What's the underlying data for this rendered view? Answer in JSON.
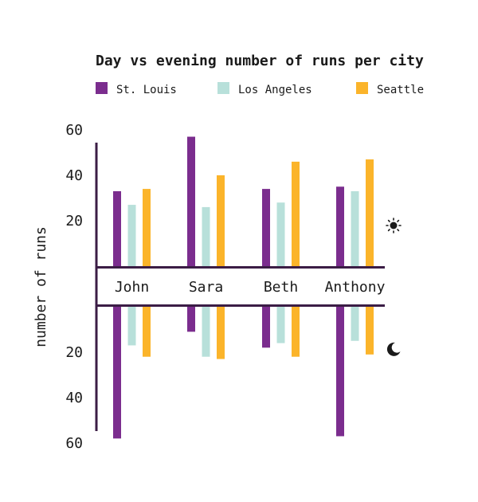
{
  "chart_data": {
    "type": "bar",
    "title": "Day vs evening number of runs per city",
    "ylabel": "number of runs",
    "categories": [
      "John",
      "Sara",
      "Beth",
      "Anthony"
    ],
    "yticks": [
      20,
      40,
      60
    ],
    "ylim": [
      0,
      62
    ],
    "day_icon": "sun-icon",
    "evening_icon": "moon-icon",
    "day": [
      {
        "name": "St. Louis",
        "color": "#7b2d8e",
        "values": [
          33,
          57,
          34,
          35
        ]
      },
      {
        "name": "Los Angeles",
        "color": "#b8e0da",
        "values": [
          27,
          26,
          28,
          33
        ]
      },
      {
        "name": "Seattle",
        "color": "#fbb42a",
        "values": [
          34,
          40,
          46,
          47
        ]
      }
    ],
    "evening": [
      {
        "name": "St. Louis",
        "color": "#7b2d8e",
        "values": [
          58,
          11,
          18,
          57
        ]
      },
      {
        "name": "Los Angeles",
        "color": "#b8e0da",
        "values": [
          17,
          22,
          16,
          15
        ]
      },
      {
        "name": "Seattle",
        "color": "#fbb42a",
        "values": [
          22,
          23,
          22,
          21
        ]
      }
    ]
  }
}
